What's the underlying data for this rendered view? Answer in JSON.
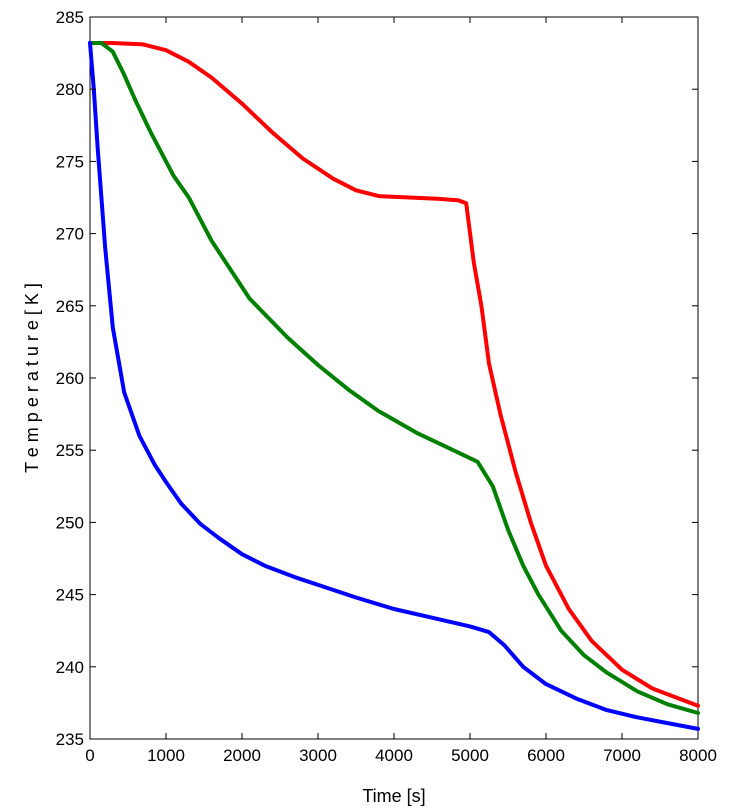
{
  "chart_data": {
    "type": "line",
    "title": "",
    "xlabel": "Time [s]",
    "ylabel": "T e m p e r a t u r e  [ K ]",
    "xlim": [
      0,
      8000
    ],
    "ylim": [
      235,
      285
    ],
    "xticks": [
      0,
      1000,
      2000,
      3000,
      4000,
      5000,
      6000,
      7000,
      8000
    ],
    "yticks": [
      235,
      240,
      245,
      250,
      255,
      260,
      265,
      270,
      275,
      280,
      285
    ],
    "grid": false,
    "series": [
      {
        "color": "#ff0000",
        "points": [
          [
            0,
            283.2
          ],
          [
            300,
            283.2
          ],
          [
            700,
            283.1
          ],
          [
            1000,
            282.7
          ],
          [
            1300,
            281.9
          ],
          [
            1600,
            280.8
          ],
          [
            2000,
            279.0
          ],
          [
            2400,
            277.0
          ],
          [
            2800,
            275.2
          ],
          [
            3200,
            273.8
          ],
          [
            3500,
            273.0
          ],
          [
            3800,
            272.6
          ],
          [
            4200,
            272.5
          ],
          [
            4600,
            272.4
          ],
          [
            4850,
            272.3
          ],
          [
            4950,
            272.1
          ],
          [
            5050,
            268.0
          ],
          [
            5150,
            265.0
          ],
          [
            5250,
            261.0
          ],
          [
            5400,
            257.5
          ],
          [
            5600,
            253.5
          ],
          [
            5800,
            250.0
          ],
          [
            6000,
            247.0
          ],
          [
            6300,
            244.0
          ],
          [
            6600,
            241.8
          ],
          [
            7000,
            239.8
          ],
          [
            7400,
            238.5
          ],
          [
            7700,
            237.9
          ],
          [
            8000,
            237.3
          ]
        ]
      },
      {
        "color": "#008000",
        "points": [
          [
            0,
            283.2
          ],
          [
            150,
            283.2
          ],
          [
            300,
            282.6
          ],
          [
            450,
            281.0
          ],
          [
            600,
            279.2
          ],
          [
            800,
            277.0
          ],
          [
            1100,
            274.0
          ],
          [
            1300,
            272.5
          ],
          [
            1600,
            269.5
          ],
          [
            2100,
            265.5
          ],
          [
            2600,
            262.8
          ],
          [
            3000,
            260.9
          ],
          [
            3400,
            259.2
          ],
          [
            3800,
            257.7
          ],
          [
            4300,
            256.2
          ],
          [
            4700,
            255.2
          ],
          [
            5100,
            254.2
          ],
          [
            5300,
            252.5
          ],
          [
            5500,
            249.5
          ],
          [
            5700,
            247.0
          ],
          [
            5900,
            245.0
          ],
          [
            6200,
            242.5
          ],
          [
            6500,
            240.8
          ],
          [
            6800,
            239.6
          ],
          [
            7200,
            238.3
          ],
          [
            7600,
            237.4
          ],
          [
            8000,
            236.8
          ]
        ]
      },
      {
        "color": "#0000ff",
        "points": [
          [
            0,
            283.2
          ],
          [
            50,
            280.0
          ],
          [
            100,
            276.0
          ],
          [
            200,
            269.0
          ],
          [
            300,
            263.5
          ],
          [
            450,
            259.0
          ],
          [
            650,
            256.0
          ],
          [
            850,
            254.0
          ],
          [
            1000,
            252.8
          ],
          [
            1200,
            251.3
          ],
          [
            1450,
            249.9
          ],
          [
            1700,
            248.9
          ],
          [
            2000,
            247.8
          ],
          [
            2300,
            247.0
          ],
          [
            2700,
            246.2
          ],
          [
            3100,
            245.5
          ],
          [
            3500,
            244.8
          ],
          [
            4000,
            244.0
          ],
          [
            4500,
            243.4
          ],
          [
            5000,
            242.8
          ],
          [
            5250,
            242.4
          ],
          [
            5450,
            241.5
          ],
          [
            5700,
            240.0
          ],
          [
            6000,
            238.8
          ],
          [
            6400,
            237.8
          ],
          [
            6800,
            237.0
          ],
          [
            7200,
            236.5
          ],
          [
            7600,
            236.1
          ],
          [
            8000,
            235.7
          ]
        ]
      }
    ]
  }
}
